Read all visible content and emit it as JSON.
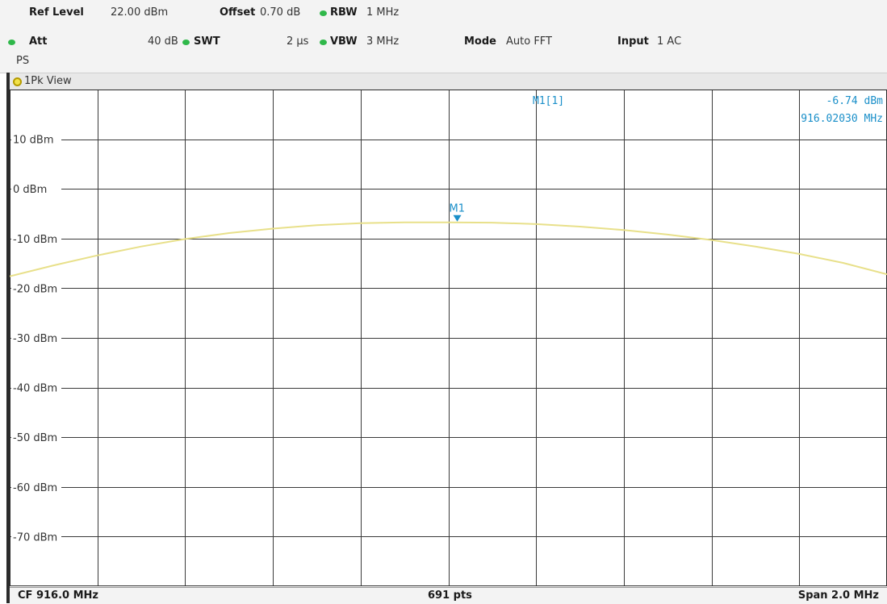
{
  "header": {
    "ref_level_label": "Ref Level",
    "ref_level_value": "22.00 dBm",
    "offset_label": "Offset",
    "offset_value": "0.70 dB",
    "rbw_label": "RBW",
    "rbw_value": "1 MHz",
    "att_label": "Att",
    "att_value": "40 dB",
    "swt_label": "SWT",
    "swt_value": "2 µs",
    "vbw_label": "VBW",
    "vbw_value": "3 MHz",
    "mode_label": "Mode",
    "mode_value": "Auto FFT",
    "input_label": "Input",
    "input_value": "1 AC",
    "ps_label": "PS",
    "indicator_color": "#2fb84a"
  },
  "view": {
    "title": "1Pk View"
  },
  "marker": {
    "name": "M1",
    "readout_label": "M1[1]",
    "level": "-6.74 dBm",
    "frequency": "916.02030 MHz",
    "color": "#1a8fc9"
  },
  "footer": {
    "center_freq": "CF 916.0 MHz",
    "points": "691 pts",
    "span": "Span 2.0 MHz"
  },
  "chart_data": {
    "type": "line",
    "title": "",
    "xlabel": "",
    "ylabel": "",
    "xlim": [
      915.0,
      917.0
    ],
    "ylim": [
      -80,
      20
    ],
    "ytick_values": [
      10,
      0,
      -10,
      -20,
      -30,
      -40,
      -50,
      -60,
      -70
    ],
    "ytick_labels": [
      "10 dBm",
      "0 dBm",
      "-10 dBm",
      "-20 dBm",
      "-30 dBm",
      "-40 dBm",
      "-50 dBm",
      "-60 dBm",
      "-70 dBm"
    ],
    "vertical_divisions": 10,
    "grid": true,
    "trace_color": "#e8e08a",
    "series": [
      {
        "x": [
          915.0,
          915.1,
          915.2,
          915.3,
          915.4,
          915.5,
          915.6,
          915.7,
          915.8,
          915.9,
          916.0,
          916.1,
          916.2,
          916.3,
          916.4,
          916.5,
          916.6,
          916.7,
          916.8,
          916.9,
          917.0
        ],
        "values": [
          -17.6,
          -15.4,
          -13.4,
          -11.6,
          -10.1,
          -8.9,
          -8.0,
          -7.3,
          -6.9,
          -6.75,
          -6.74,
          -6.8,
          -7.1,
          -7.6,
          -8.3,
          -9.2,
          -10.3,
          -11.6,
          -13.1,
          -14.9,
          -17.2
        ]
      }
    ],
    "markers": [
      {
        "name": "M1",
        "x": 916.0203,
        "y": -6.74
      }
    ]
  }
}
